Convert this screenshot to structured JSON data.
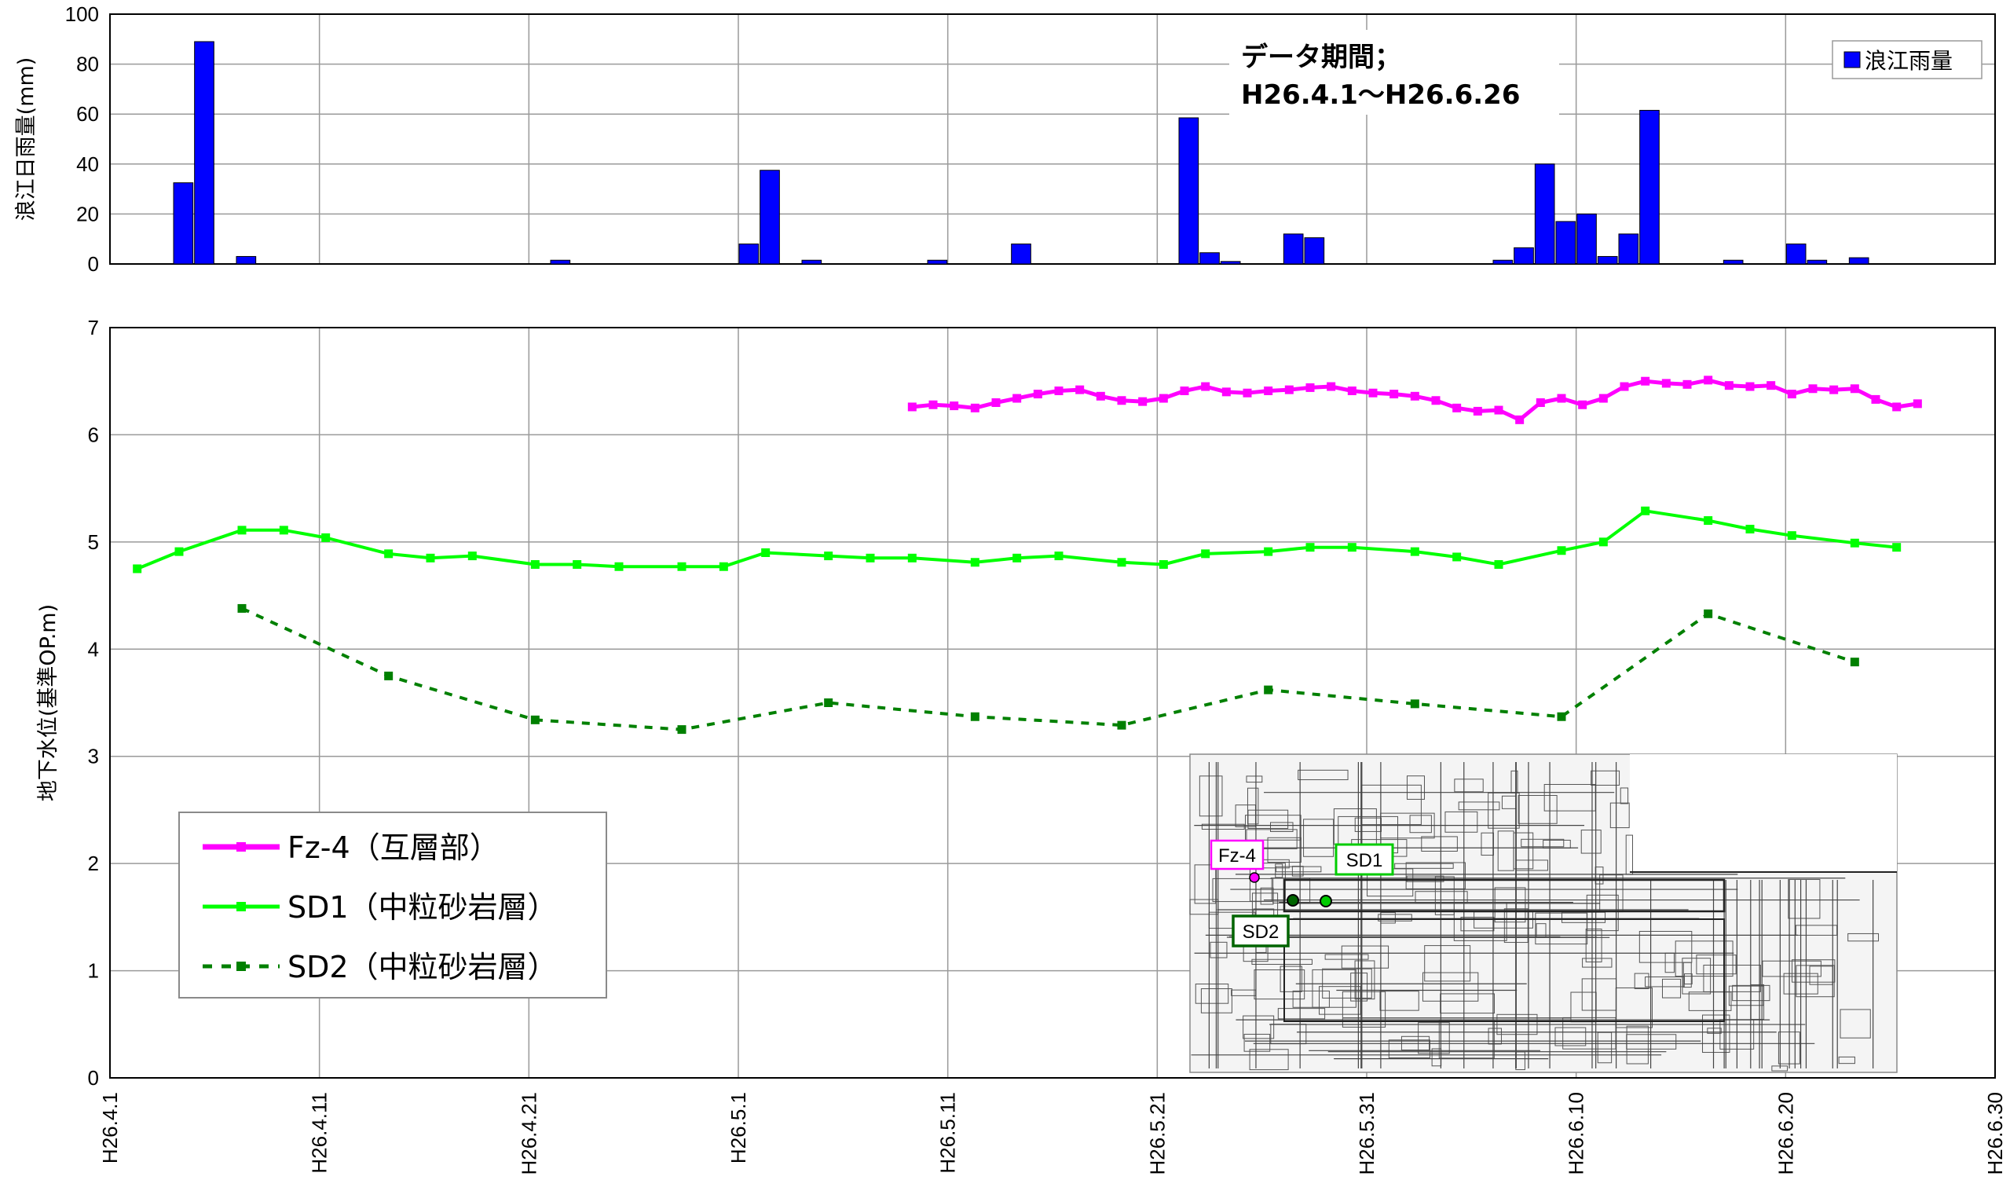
{
  "chart_data": [
    {
      "type": "bar",
      "ylabel": "浪江日雨量(mm)",
      "ylim": [
        0,
        100
      ],
      "yticks": [
        0,
        20,
        40,
        60,
        80,
        100
      ],
      "grid": true,
      "legend_position": "top-right",
      "note": {
        "line1": "データ期間；",
        "line2": "H26.4.1～H26.6.26"
      },
      "series": [
        {
          "name": "浪江雨量",
          "color": "#0000ff",
          "points": [
            [
              3,
              32.5
            ],
            [
              4,
              89
            ],
            [
              6,
              3
            ],
            [
              21,
              1.5
            ],
            [
              30,
              8
            ],
            [
              31,
              37.5
            ],
            [
              33,
              1.5
            ],
            [
              39,
              1.5
            ],
            [
              43,
              8
            ],
            [
              51,
              58.5
            ],
            [
              52,
              4.5
            ],
            [
              53,
              1
            ],
            [
              56,
              12
            ],
            [
              57,
              10.5
            ],
            [
              66,
              1.5
            ],
            [
              67,
              6.5
            ],
            [
              68,
              40
            ],
            [
              69,
              17
            ],
            [
              70,
              20
            ],
            [
              71,
              3
            ],
            [
              72,
              12
            ],
            [
              73,
              61.5
            ],
            [
              77,
              1.5
            ],
            [
              80,
              8
            ],
            [
              81,
              1.5
            ],
            [
              83,
              2.5
            ]
          ]
        }
      ]
    },
    {
      "type": "line",
      "ylabel": "地下水位(基準OP.m)",
      "ylim": [
        0,
        7
      ],
      "yticks": [
        0,
        1,
        2,
        3,
        4,
        5,
        6,
        7
      ],
      "x_start_label": "H26.4.1",
      "x_tick_labels": [
        "H26.4.1",
        "H26.4.11",
        "H26.4.21",
        "H26.5.1",
        "H26.5.11",
        "H26.5.21",
        "H26.5.31",
        "H26.6.10",
        "H26.6.20",
        "H26.6.30"
      ],
      "grid": true,
      "legend_position": "bottom-left",
      "series": [
        {
          "name": "Fz-4（互層部）",
          "color": "#ff00ff",
          "style": "solid",
          "points": [
            [
              38.3,
              6.26
            ],
            [
              39.3,
              6.28
            ],
            [
              40.3,
              6.27
            ],
            [
              41.3,
              6.25
            ],
            [
              42.3,
              6.3
            ],
            [
              43.3,
              6.34
            ],
            [
              44.3,
              6.38
            ],
            [
              45.3,
              6.41
            ],
            [
              46.3,
              6.42
            ],
            [
              47.3,
              6.36
            ],
            [
              48.3,
              6.32
            ],
            [
              49.3,
              6.31
            ],
            [
              50.3,
              6.34
            ],
            [
              51.3,
              6.41
            ],
            [
              52.3,
              6.45
            ],
            [
              53.3,
              6.4
            ],
            [
              54.3,
              6.39
            ],
            [
              55.3,
              6.41
            ],
            [
              56.3,
              6.42
            ],
            [
              57.3,
              6.44
            ],
            [
              58.3,
              6.45
            ],
            [
              59.3,
              6.41
            ],
            [
              60.3,
              6.39
            ],
            [
              61.3,
              6.38
            ],
            [
              62.3,
              6.36
            ],
            [
              63.3,
              6.32
            ],
            [
              64.3,
              6.25
            ],
            [
              65.3,
              6.22
            ],
            [
              66.3,
              6.23
            ],
            [
              67.3,
              6.14
            ],
            [
              68.3,
              6.3
            ],
            [
              69.3,
              6.34
            ],
            [
              70.3,
              6.28
            ],
            [
              71.3,
              6.34
            ],
            [
              72.3,
              6.45
            ],
            [
              73.3,
              6.5
            ],
            [
              74.3,
              6.48
            ],
            [
              75.3,
              6.47
            ],
            [
              76.3,
              6.51
            ],
            [
              77.3,
              6.46
            ],
            [
              78.3,
              6.45
            ],
            [
              79.3,
              6.46
            ],
            [
              80.3,
              6.38
            ],
            [
              81.3,
              6.43
            ],
            [
              82.3,
              6.42
            ],
            [
              83.3,
              6.43
            ],
            [
              84.3,
              6.33
            ],
            [
              85.3,
              6.26
            ],
            [
              86.3,
              6.29
            ]
          ]
        },
        {
          "name": "SD1（中粒砂岩層）",
          "color": "#00ff00",
          "style": "solid",
          "points": [
            [
              1.3,
              4.75
            ],
            [
              3.3,
              4.91
            ],
            [
              6.3,
              5.11
            ],
            [
              8.3,
              5.11
            ],
            [
              10.3,
              5.04
            ],
            [
              13.3,
              4.89
            ],
            [
              15.3,
              4.85
            ],
            [
              17.3,
              4.87
            ],
            [
              20.3,
              4.79
            ],
            [
              22.3,
              4.79
            ],
            [
              24.3,
              4.77
            ],
            [
              27.3,
              4.77
            ],
            [
              29.3,
              4.77
            ],
            [
              31.3,
              4.9
            ],
            [
              34.3,
              4.87
            ],
            [
              36.3,
              4.85
            ],
            [
              38.3,
              4.85
            ],
            [
              41.3,
              4.81
            ],
            [
              43.3,
              4.85
            ],
            [
              45.3,
              4.87
            ],
            [
              48.3,
              4.81
            ],
            [
              50.3,
              4.79
            ],
            [
              52.3,
              4.89
            ],
            [
              55.3,
              4.91
            ],
            [
              57.3,
              4.95
            ],
            [
              59.3,
              4.95
            ],
            [
              62.3,
              4.91
            ],
            [
              64.3,
              4.86
            ],
            [
              66.3,
              4.79
            ],
            [
              69.3,
              4.92
            ],
            [
              71.3,
              5.0
            ],
            [
              73.3,
              5.29
            ],
            [
              76.3,
              5.2
            ],
            [
              78.3,
              5.12
            ],
            [
              80.3,
              5.06
            ],
            [
              83.3,
              4.99
            ],
            [
              85.3,
              4.95
            ]
          ]
        },
        {
          "name": "SD2（中粒砂岩層）",
          "color": "#008000",
          "style": "dashed",
          "points": [
            [
              6.3,
              4.38
            ],
            [
              13.3,
              3.75
            ],
            [
              20.3,
              3.34
            ],
            [
              27.3,
              3.25
            ],
            [
              34.3,
              3.5
            ],
            [
              41.3,
              3.37
            ],
            [
              48.3,
              3.29
            ],
            [
              55.3,
              3.62
            ],
            [
              62.3,
              3.49
            ],
            [
              69.3,
              3.37
            ],
            [
              76.3,
              4.33
            ],
            [
              83.3,
              3.88
            ]
          ]
        }
      ],
      "inset_map": {
        "description_labels": [
          "Fz-4",
          "SD1",
          "SD2"
        ],
        "fz4_color": "#ff00ff",
        "sd1_color": "#00cc00",
        "sd2_color": "#006400"
      }
    }
  ]
}
